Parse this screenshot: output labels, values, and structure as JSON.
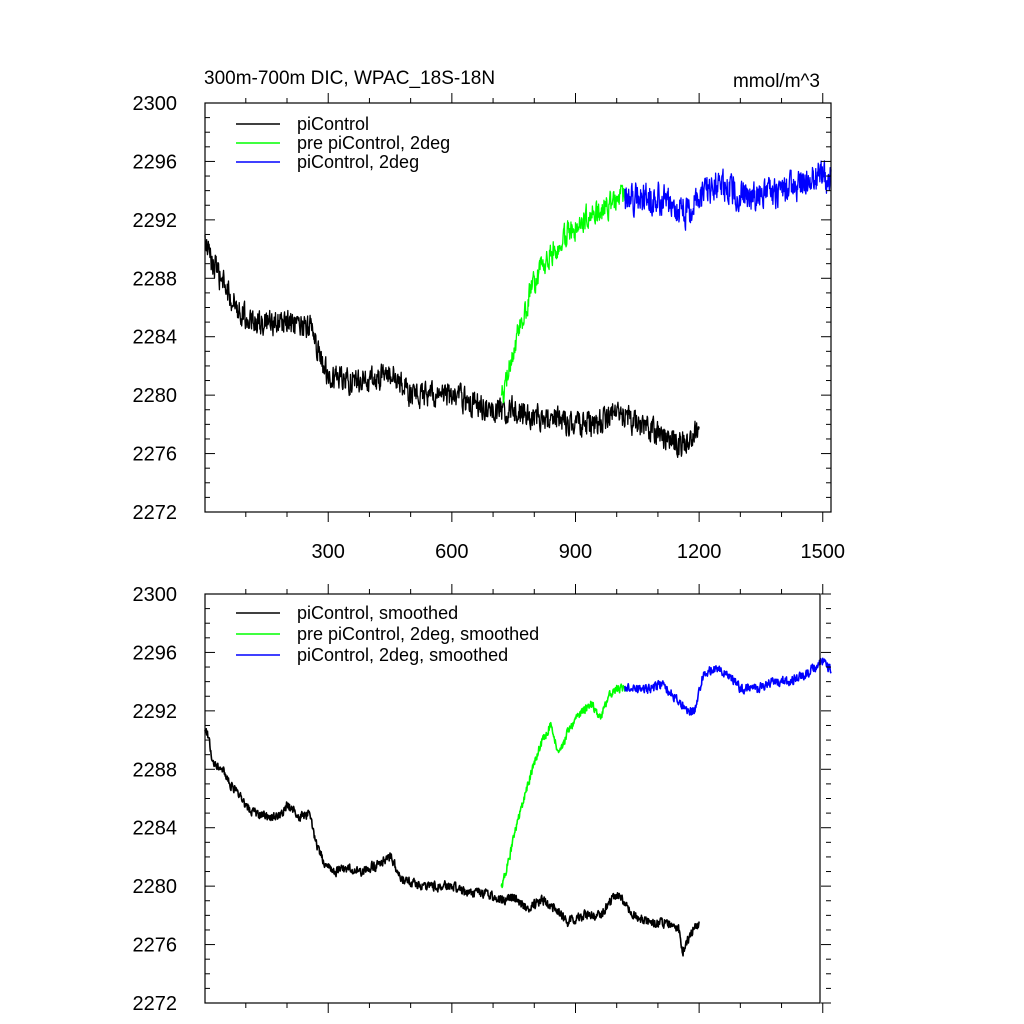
{
  "title_left": "300m-700m DIC, WPAC_18S-18N",
  "title_right": "mmol/m^3",
  "colors": {
    "picontrol": "#000000",
    "pre_2deg": "#00ff00",
    "picontrol_2deg": "#0000ff"
  },
  "chart_data": [
    {
      "type": "line",
      "panel": "raw",
      "xlim": [
        1,
        1520
      ],
      "ylim": [
        2272,
        2300
      ],
      "xticks": [
        300,
        600,
        900,
        1200,
        1500
      ],
      "xtick_labels": [
        "300",
        "600",
        "900",
        "1200",
        "1500"
      ],
      "yticks": [
        2272,
        2276,
        2280,
        2284,
        2288,
        2292,
        2296,
        2300
      ],
      "ytick_labels": [
        "2272",
        "2276",
        "2280",
        "2284",
        "2288",
        "2292",
        "2296",
        "2300"
      ],
      "legend": [
        "piControl",
        "pre piControl, 2deg",
        "piControl, 2deg"
      ],
      "legend_position": "top-left",
      "series": [
        {
          "name": "piControl",
          "color": "#000000",
          "x_range": [
            1,
            1200
          ],
          "noise": 1.2,
          "anchors": [
            [
              1,
              2290.5
            ],
            [
              20,
              2289
            ],
            [
              60,
              2286.8
            ],
            [
              100,
              2285.3
            ],
            [
              150,
              2284.8
            ],
            [
              200,
              2285
            ],
            [
              230,
              2284.5
            ],
            [
              260,
              2284.8
            ],
            [
              280,
              2282.5
            ],
            [
              300,
              2281.5
            ],
            [
              350,
              2281
            ],
            [
              400,
              2281
            ],
            [
              450,
              2281.5
            ],
            [
              500,
              2280
            ],
            [
              550,
              2280
            ],
            [
              600,
              2280
            ],
            [
              650,
              2279.5
            ],
            [
              700,
              2279
            ],
            [
              750,
              2279
            ],
            [
              800,
              2278.5
            ],
            [
              850,
              2278.5
            ],
            [
              900,
              2278
            ],
            [
              950,
              2278
            ],
            [
              1000,
              2279
            ],
            [
              1050,
              2278
            ],
            [
              1100,
              2277.5
            ],
            [
              1150,
              2276.5
            ],
            [
              1200,
              2277.5
            ]
          ]
        },
        {
          "name": "pre piControl, 2deg",
          "color": "#00ff00",
          "x_range": [
            720,
            1020
          ],
          "noise": 1.2,
          "anchors": [
            [
              720,
              2279.5
            ],
            [
              740,
              2282
            ],
            [
              760,
              2284
            ],
            [
              790,
              2287
            ],
            [
              820,
              2289
            ],
            [
              850,
              2290
            ],
            [
              880,
              2291
            ],
            [
              920,
              2292
            ],
            [
              960,
              2292.5
            ],
            [
              1000,
              2293.5
            ],
            [
              1020,
              2293.5
            ]
          ]
        },
        {
          "name": "piControl, 2deg",
          "color": "#0000ff",
          "x_range": [
            1020,
            1520
          ],
          "noise": 1.5,
          "anchors": [
            [
              1020,
              2293.5
            ],
            [
              1060,
              2293.5
            ],
            [
              1100,
              2293.5
            ],
            [
              1140,
              2293
            ],
            [
              1170,
              2292.5
            ],
            [
              1200,
              2293.5
            ],
            [
              1240,
              2294.5
            ],
            [
              1280,
              2294
            ],
            [
              1320,
              2293.5
            ],
            [
              1360,
              2293.5
            ],
            [
              1400,
              2294
            ],
            [
              1450,
              2294.5
            ],
            [
              1500,
              2295
            ],
            [
              1520,
              2294.8
            ]
          ]
        }
      ]
    },
    {
      "type": "line",
      "panel": "smoothed",
      "xlim": [
        1,
        1520
      ],
      "ylim": [
        2272,
        2300
      ],
      "xticks": [
        300,
        600,
        900,
        1200,
        1500
      ],
      "yticks": [
        2272,
        2276,
        2280,
        2284,
        2288,
        2292,
        2296,
        2300
      ],
      "ytick_labels": [
        "2272",
        "2276",
        "2280",
        "2284",
        "2288",
        "2292",
        "2296",
        "2300"
      ],
      "legend": [
        "piControl, smoothed",
        "pre piControl, 2deg, smoothed",
        "piControl, 2deg, smoothed"
      ],
      "legend_position": "top-left",
      "series": [
        {
          "name": "piControl, smoothed",
          "color": "#000000",
          "x_range": [
            1,
            1200
          ],
          "noise": 0.45,
          "anchors": [
            [
              1,
              2290.5
            ],
            [
              10,
              2290.3
            ],
            [
              20,
              2288.5
            ],
            [
              40,
              2288.2
            ],
            [
              60,
              2287
            ],
            [
              80,
              2286.5
            ],
            [
              100,
              2285.5
            ],
            [
              120,
              2285
            ],
            [
              150,
              2284.8
            ],
            [
              180,
              2284.8
            ],
            [
              200,
              2285.5
            ],
            [
              230,
              2284.8
            ],
            [
              255,
              2285
            ],
            [
              270,
              2283
            ],
            [
              290,
              2281.5
            ],
            [
              320,
              2281
            ],
            [
              350,
              2281.2
            ],
            [
              380,
              2281
            ],
            [
              420,
              2281.5
            ],
            [
              450,
              2282
            ],
            [
              480,
              2280.5
            ],
            [
              520,
              2280
            ],
            [
              560,
              2280
            ],
            [
              600,
              2280
            ],
            [
              640,
              2279.5
            ],
            [
              680,
              2279.5
            ],
            [
              720,
              2279
            ],
            [
              750,
              2279.2
            ],
            [
              780,
              2278.5
            ],
            [
              820,
              2279
            ],
            [
              850,
              2278.5
            ],
            [
              880,
              2277.5
            ],
            [
              920,
              2278
            ],
            [
              960,
              2278
            ],
            [
              1000,
              2279.5
            ],
            [
              1040,
              2278
            ],
            [
              1080,
              2277.5
            ],
            [
              1120,
              2277.5
            ],
            [
              1150,
              2277
            ],
            [
              1160,
              2275.5
            ],
            [
              1180,
              2276.8
            ],
            [
              1200,
              2277.5
            ]
          ]
        },
        {
          "name": "pre piControl, 2deg, smoothed",
          "color": "#00ff00",
          "x_range": [
            720,
            1020
          ],
          "noise": 0.4,
          "anchors": [
            [
              720,
              2279.8
            ],
            [
              740,
              2282
            ],
            [
              760,
              2284.5
            ],
            [
              780,
              2286.5
            ],
            [
              800,
              2288.5
            ],
            [
              820,
              2290
            ],
            [
              840,
              2291
            ],
            [
              860,
              2289
            ],
            [
              880,
              2290.5
            ],
            [
              900,
              2291.5
            ],
            [
              920,
              2292
            ],
            [
              940,
              2292.5
            ],
            [
              960,
              2291.5
            ],
            [
              980,
              2293
            ],
            [
              1000,
              2293.5
            ],
            [
              1020,
              2293.5
            ]
          ]
        },
        {
          "name": "piControl, 2deg, smoothed",
          "color": "#0000ff",
          "x_range": [
            1020,
            1520
          ],
          "noise": 0.45,
          "anchors": [
            [
              1020,
              2293.5
            ],
            [
              1050,
              2293.5
            ],
            [
              1080,
              2293.5
            ],
            [
              1110,
              2293.8
            ],
            [
              1140,
              2293
            ],
            [
              1170,
              2292
            ],
            [
              1190,
              2292
            ],
            [
              1210,
              2294.5
            ],
            [
              1240,
              2295
            ],
            [
              1270,
              2294.5
            ],
            [
              1300,
              2293.5
            ],
            [
              1340,
              2293.5
            ],
            [
              1380,
              2294
            ],
            [
              1420,
              2294
            ],
            [
              1460,
              2294.5
            ],
            [
              1500,
              2295.5
            ],
            [
              1520,
              2294.8
            ]
          ]
        }
      ]
    }
  ]
}
